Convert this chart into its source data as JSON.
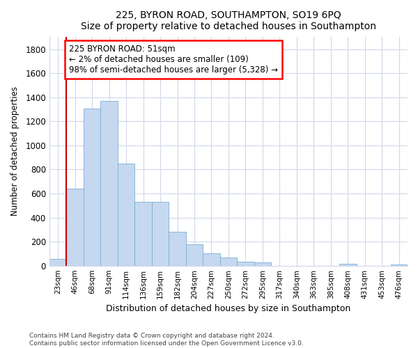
{
  "title1": "225, BYRON ROAD, SOUTHAMPTON, SO19 6PQ",
  "title2": "Size of property relative to detached houses in Southampton",
  "xlabel": "Distribution of detached houses by size in Southampton",
  "ylabel": "Number of detached properties",
  "categories": [
    "23sqm",
    "46sqm",
    "68sqm",
    "91sqm",
    "114sqm",
    "136sqm",
    "159sqm",
    "182sqm",
    "204sqm",
    "227sqm",
    "250sqm",
    "272sqm",
    "295sqm",
    "317sqm",
    "340sqm",
    "363sqm",
    "385sqm",
    "408sqm",
    "431sqm",
    "453sqm",
    "476sqm"
  ],
  "values": [
    55,
    640,
    1305,
    1370,
    850,
    530,
    530,
    280,
    180,
    105,
    70,
    35,
    25,
    0,
    0,
    0,
    0,
    15,
    0,
    0,
    10
  ],
  "bar_color": "#c5d8f0",
  "bar_edge_color": "#7aafd4",
  "vline_x": 1.5,
  "annotation_text": "225 BYRON ROAD: 51sqm\n← 2% of detached houses are smaller (109)\n98% of semi-detached houses are larger (5,328) →",
  "annotation_box_color": "white",
  "annotation_box_edge": "red",
  "vline_color": "#cc0000",
  "ylim": [
    0,
    1900
  ],
  "yticks": [
    0,
    200,
    400,
    600,
    800,
    1000,
    1200,
    1400,
    1600,
    1800
  ],
  "footer1": "Contains HM Land Registry data © Crown copyright and database right 2024.",
  "footer2": "Contains public sector information licensed under the Open Government Licence v3.0.",
  "background_color": "#ffffff",
  "plot_background": "#ffffff",
  "grid_color": "#d0d8e8"
}
